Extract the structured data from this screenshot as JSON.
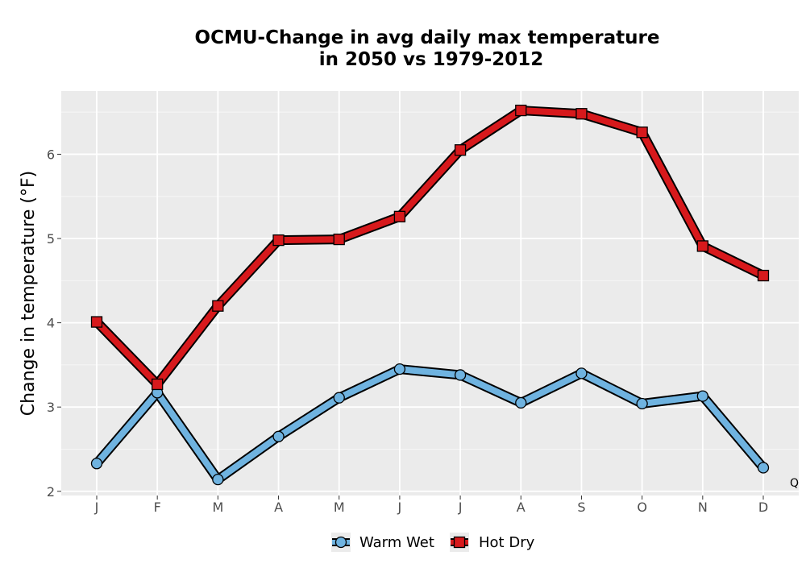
{
  "chart_data": {
    "type": "line",
    "title_line1": "OCMU-Change in avg daily max temperature",
    "title_line2": "in 2050 vs 1979-2012",
    "xlabel": "",
    "ylabel": "Change in temperature (°F)",
    "categories": [
      "J",
      "F",
      "M",
      "A",
      "M",
      "J",
      "J",
      "A",
      "S",
      "O",
      "N",
      "D"
    ],
    "ylim": [
      1.95,
      6.75
    ],
    "yticks": [
      "2",
      "3",
      "4",
      "5",
      "6"
    ],
    "grid": true,
    "legend_position": "bottom",
    "corner_label": "Q",
    "series": [
      {
        "name": "Warm Wet",
        "color": "#6fb3e0",
        "marker": "circle",
        "values": [
          2.33,
          3.17,
          2.14,
          2.65,
          3.11,
          3.45,
          3.38,
          3.05,
          3.4,
          3.04,
          3.13,
          2.28
        ]
      },
      {
        "name": "Hot Dry",
        "color": "#d7191c",
        "marker": "square",
        "values": [
          4.01,
          3.27,
          4.2,
          4.98,
          4.99,
          5.26,
          6.05,
          6.52,
          6.48,
          6.26,
          4.91,
          4.56
        ]
      }
    ]
  }
}
